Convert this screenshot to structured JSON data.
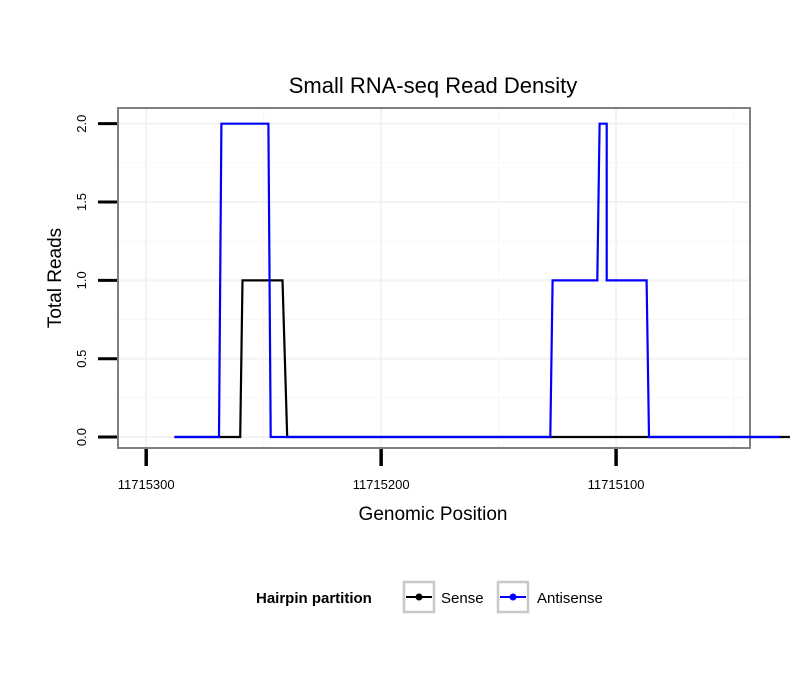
{
  "chart_data": {
    "type": "line",
    "title": "Small RNA-seq Read Density",
    "xlabel": "Genomic Position",
    "ylabel": "Total Reads",
    "x_reversed": true,
    "xlim": [
      11715312,
      11715043
    ],
    "ylim": [
      -0.07,
      2.1
    ],
    "x_ticks": [
      11715300,
      11715200,
      11715100
    ],
    "x_tick_labels": [
      "11715300",
      "11715200",
      "11715100"
    ],
    "y_ticks": [
      0,
      0.5,
      1,
      1.5,
      2
    ],
    "y_tick_labels": [
      "0.0",
      "0.5",
      "1.0",
      "1.5",
      "2.0"
    ],
    "grid": true,
    "legend": {
      "title": "Hairpin partition",
      "position": "bottom",
      "entries": [
        "Sense",
        "Antisense"
      ]
    },
    "series": [
      {
        "name": "Sense",
        "color": "#000000",
        "points": [
          [
            11715288,
            0
          ],
          [
            11715260,
            0
          ],
          [
            11715259,
            1
          ],
          [
            11715242,
            1
          ],
          [
            11715240,
            0
          ],
          [
            11715026,
            0
          ]
        ]
      },
      {
        "name": "Antisense",
        "color": "#0000ff",
        "points": [
          [
            11715288,
            0
          ],
          [
            11715269,
            0
          ],
          [
            11715268,
            2
          ],
          [
            11715248,
            2
          ],
          [
            11715247,
            0
          ],
          [
            11715128,
            0
          ],
          [
            11715127,
            1
          ],
          [
            11715108,
            1
          ],
          [
            11715107,
            2
          ],
          [
            11715104,
            2
          ],
          [
            11715104,
            1
          ],
          [
            11715087,
            1
          ],
          [
            11715086,
            0
          ],
          [
            11715030,
            0
          ]
        ]
      }
    ]
  }
}
